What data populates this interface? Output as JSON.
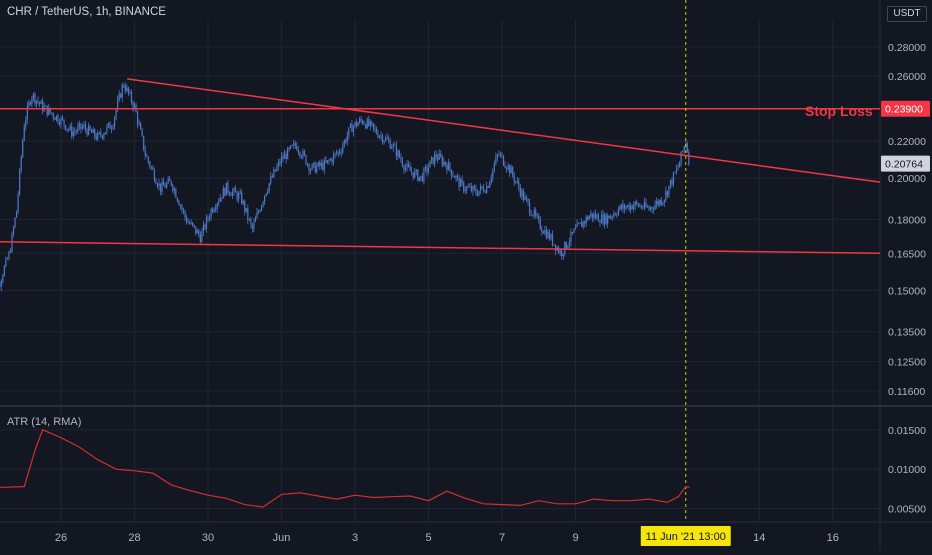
{
  "header": {
    "symbol_title": "CHR / TetherUS, 1h, BINANCE",
    "currency_label": "USDT"
  },
  "annotations": {
    "stop_loss_label": "Stop Loss"
  },
  "colors": {
    "background": "#131722",
    "grid": "#1f2430",
    "candle": "#4d79c7",
    "trendline": "#f23645",
    "atr_line": "#d32f2f",
    "crosshair": "#c8d400",
    "date_badge": "#f5e50a"
  },
  "chart_data": [
    {
      "type": "candlestick",
      "title": "CHR / TetherUS, 1h, BINANCE",
      "x_ticks": [
        "26",
        "28",
        "30",
        "Jun",
        "3",
        "5",
        "7",
        "9",
        "14",
        "16"
      ],
      "y_ticks": [
        "0.28000",
        "0.26000",
        "0.22000",
        "0.20000",
        "0.18000",
        "0.16500",
        "0.15000",
        "0.13500",
        "0.12500",
        "0.11600"
      ],
      "price_labels": [
        {
          "value": "0.23900",
          "role": "stop-loss"
        },
        {
          "value": "0.20764",
          "role": "last-price"
        }
      ],
      "scale": "log",
      "ylim": [
        0.113,
        0.3
      ],
      "price_path": [
        [
          24.0,
          0.145
        ],
        [
          24.3,
          0.152
        ],
        [
          24.6,
          0.165
        ],
        [
          24.8,
          0.185
        ],
        [
          25.0,
          0.23
        ],
        [
          25.2,
          0.248
        ],
        [
          25.5,
          0.24
        ],
        [
          26.0,
          0.232
        ],
        [
          26.3,
          0.225
        ],
        [
          26.6,
          0.228
        ],
        [
          27.0,
          0.222
        ],
        [
          27.4,
          0.23
        ],
        [
          27.7,
          0.255
        ],
        [
          28.0,
          0.24
        ],
        [
          28.3,
          0.212
        ],
        [
          28.7,
          0.195
        ],
        [
          29.0,
          0.198
        ],
        [
          29.4,
          0.18
        ],
        [
          29.8,
          0.172
        ],
        [
          30.1,
          0.185
        ],
        [
          30.5,
          0.195
        ],
        [
          30.9,
          0.19
        ],
        [
          31.2,
          0.175
        ],
        [
          31.6,
          0.195
        ],
        [
          32.0,
          0.21
        ],
        [
          32.4,
          0.218
        ],
        [
          32.8,
          0.205
        ],
        [
          33.2,
          0.207
        ],
        [
          33.6,
          0.215
        ],
        [
          33.9,
          0.228
        ],
        [
          34.2,
          0.232
        ],
        [
          34.6,
          0.225
        ],
        [
          35.0,
          0.218
        ],
        [
          35.4,
          0.205
        ],
        [
          35.8,
          0.2
        ],
        [
          36.2,
          0.212
        ],
        [
          36.5,
          0.207
        ],
        [
          36.9,
          0.196
        ],
        [
          37.3,
          0.193
        ],
        [
          37.6,
          0.196
        ],
        [
          37.9,
          0.213
        ],
        [
          38.2,
          0.205
        ],
        [
          38.6,
          0.19
        ],
        [
          39.0,
          0.178
        ],
        [
          39.3,
          0.172
        ],
        [
          39.6,
          0.165
        ],
        [
          40.0,
          0.175
        ],
        [
          40.4,
          0.182
        ],
        [
          40.8,
          0.18
        ],
        [
          41.2,
          0.185
        ],
        [
          41.6,
          0.187
        ],
        [
          42.0,
          0.185
        ],
        [
          42.4,
          0.19
        ],
        [
          42.8,
          0.206
        ],
        [
          43.0,
          0.22
        ],
        [
          43.1,
          0.208
        ]
      ],
      "trendlines": [
        {
          "name": "upper",
          "from": [
            27.8,
            0.258
          ],
          "to": [
            48.4,
            0.198
          ]
        },
        {
          "name": "lower",
          "from": [
            24.0,
            0.17
          ],
          "to": [
            48.4,
            0.165
          ]
        },
        {
          "name": "stop-loss",
          "from": [
            24.0,
            0.239
          ],
          "to": [
            48.4,
            0.239
          ]
        }
      ],
      "crosshair": {
        "label": "11 Jun '21   13:00"
      }
    },
    {
      "type": "line",
      "title": "ATR (14, RMA)",
      "y_ticks": [
        "0.01500",
        "0.01000",
        "0.00500"
      ],
      "ylim": [
        0.0038,
        0.0165
      ],
      "x": [
        24.0,
        24.5,
        25.0,
        25.3,
        25.5,
        26.0,
        26.5,
        27.0,
        27.5,
        28.0,
        28.5,
        29.0,
        29.5,
        30.0,
        30.5,
        31.0,
        31.5,
        32.0,
        32.5,
        33.0,
        33.5,
        34.0,
        34.5,
        35.0,
        35.5,
        36.0,
        36.5,
        37.0,
        37.5,
        38.0,
        38.5,
        39.0,
        39.5,
        40.0,
        40.5,
        41.0,
        41.5,
        42.0,
        42.5,
        42.8,
        43.0,
        43.1
      ],
      "values": [
        0.0077,
        0.0077,
        0.0078,
        0.0125,
        0.015,
        0.014,
        0.0128,
        0.0112,
        0.01,
        0.0098,
        0.0095,
        0.008,
        0.0073,
        0.0067,
        0.0063,
        0.0055,
        0.0052,
        0.0068,
        0.007,
        0.0066,
        0.0062,
        0.0067,
        0.0064,
        0.0065,
        0.0066,
        0.006,
        0.0072,
        0.0063,
        0.0056,
        0.0055,
        0.0054,
        0.006,
        0.0056,
        0.0056,
        0.0062,
        0.006,
        0.006,
        0.0062,
        0.0058,
        0.0065,
        0.0078,
        0.0077
      ]
    }
  ]
}
